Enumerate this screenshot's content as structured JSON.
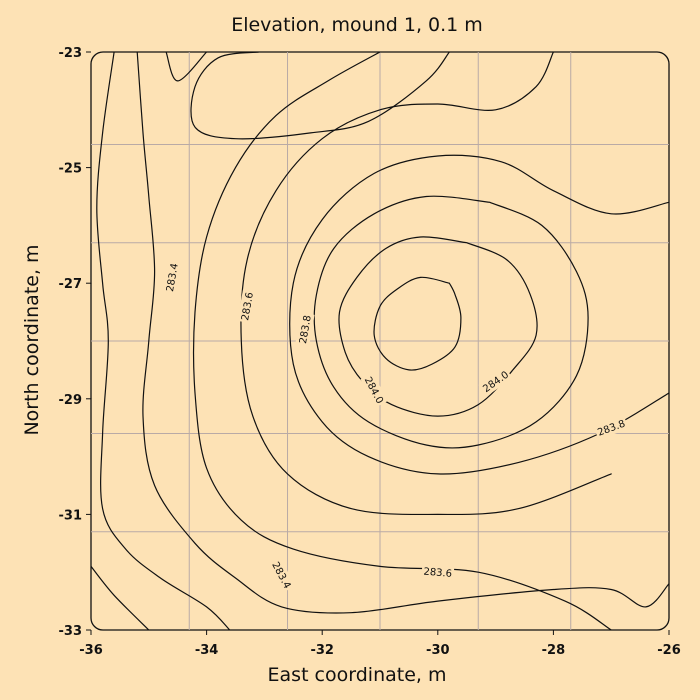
{
  "chart_data": {
    "type": "contour",
    "title": "Elevation, mound 1, 0.1 m",
    "xlabel": "East coordinate, m",
    "ylabel": "North coordinate, m",
    "xlim": [
      -36,
      -26
    ],
    "ylim": [
      -33,
      -23
    ],
    "xticks": [
      -36,
      -34,
      -32,
      -30,
      -28,
      -26
    ],
    "yticks": [
      -23,
      -25,
      -27,
      -29,
      -31,
      -33
    ],
    "xtick_labels": [
      "-36",
      "-34",
      "-32",
      "-30",
      "-28",
      "-26"
    ],
    "ytick_labels": [
      "-23",
      "-25",
      "-27",
      "-29",
      "-31",
      "-33"
    ],
    "grid": true,
    "grid_x": [
      -34.3,
      -32.6,
      -31.0,
      -29.3,
      -27.7
    ],
    "grid_y": [
      -24.6,
      -26.3,
      -28.0,
      -29.6,
      -31.3
    ],
    "contour_interval": 0.1,
    "contours": [
      {
        "level": 284.1,
        "labeled": false,
        "points": [
          [
            -29.8,
            -27.0
          ],
          [
            -30.3,
            -26.9
          ],
          [
            -30.7,
            -27.1
          ],
          [
            -31.0,
            -27.4
          ],
          [
            -31.1,
            -27.9
          ],
          [
            -30.9,
            -28.3
          ],
          [
            -30.5,
            -28.5
          ],
          [
            -30.1,
            -28.4
          ],
          [
            -29.7,
            -28.1
          ],
          [
            -29.6,
            -27.6
          ],
          [
            -29.7,
            -27.2
          ],
          [
            -29.8,
            -27.0
          ]
        ]
      },
      {
        "level": 284.0,
        "labeled": true,
        "labels": [
          {
            "text": "284.0",
            "x": -31.1,
            "y": -28.85,
            "angle": 62
          },
          {
            "text": "284.0",
            "x": -29.0,
            "y": -28.7,
            "angle": -35
          }
        ],
        "points": [
          [
            -29.5,
            -26.3
          ],
          [
            -30.3,
            -26.2
          ],
          [
            -30.9,
            -26.4
          ],
          [
            -31.4,
            -26.9
          ],
          [
            -31.7,
            -27.5
          ],
          [
            -31.6,
            -28.2
          ],
          [
            -31.3,
            -28.7
          ],
          [
            -30.8,
            -29.1
          ],
          [
            -30.0,
            -29.3
          ],
          [
            -29.3,
            -29.1
          ],
          [
            -28.7,
            -28.5
          ],
          [
            -28.3,
            -27.9
          ],
          [
            -28.4,
            -27.2
          ],
          [
            -28.8,
            -26.6
          ],
          [
            -29.5,
            -26.3
          ]
        ]
      },
      {
        "level": 283.9,
        "labeled": false,
        "points": [
          [
            -29.1,
            -25.6
          ],
          [
            -30.2,
            -25.5
          ],
          [
            -31.1,
            -25.8
          ],
          [
            -31.8,
            -26.4
          ],
          [
            -32.1,
            -27.2
          ],
          [
            -32.1,
            -28.0
          ],
          [
            -31.8,
            -28.8
          ],
          [
            -31.2,
            -29.4
          ],
          [
            -30.2,
            -29.8
          ],
          [
            -29.3,
            -29.8
          ],
          [
            -28.3,
            -29.4
          ],
          [
            -27.6,
            -28.6
          ],
          [
            -27.4,
            -27.6
          ],
          [
            -27.6,
            -26.8
          ],
          [
            -28.2,
            -26.0
          ],
          [
            -29.1,
            -25.6
          ]
        ]
      },
      {
        "level": 283.8,
        "labeled": true,
        "labels": [
          {
            "text": "283.8",
            "x": -32.3,
            "y": -27.8,
            "angle": -80
          },
          {
            "text": "283.8",
            "x": -27.0,
            "y": -29.5,
            "angle": -20
          }
        ],
        "points": [
          [
            -26.0,
            -28.9
          ],
          [
            -27.2,
            -29.6
          ],
          [
            -28.6,
            -30.1
          ],
          [
            -30.0,
            -30.3
          ],
          [
            -31.2,
            -30.0
          ],
          [
            -32.0,
            -29.4
          ],
          [
            -32.5,
            -28.4
          ],
          [
            -32.5,
            -27.0
          ],
          [
            -32.0,
            -25.9
          ],
          [
            -31.1,
            -25.1
          ],
          [
            -30.0,
            -24.8
          ],
          [
            -28.9,
            -24.9
          ],
          [
            -28.0,
            -25.4
          ],
          [
            -27.0,
            -25.8
          ],
          [
            -26.0,
            -25.6
          ]
        ]
      },
      {
        "level": 283.7,
        "labeled": false,
        "points": [
          [
            -27.0,
            -30.3
          ],
          [
            -28.6,
            -30.9
          ],
          [
            -30.0,
            -31.0
          ],
          [
            -31.5,
            -30.9
          ],
          [
            -32.6,
            -30.3
          ],
          [
            -33.2,
            -29.3
          ],
          [
            -33.4,
            -28.0
          ],
          [
            -33.3,
            -26.6
          ],
          [
            -32.8,
            -25.4
          ],
          [
            -32.0,
            -24.5
          ],
          [
            -31.0,
            -24.0
          ],
          [
            -30.0,
            -23.9
          ],
          [
            -29.0,
            -24.0
          ],
          [
            -28.3,
            -23.6
          ],
          [
            -28.0,
            -23.0
          ]
        ]
      },
      {
        "level": 283.6,
        "labeled": true,
        "labels": [
          {
            "text": "283.6",
            "x": -33.3,
            "y": -27.4,
            "angle": -80
          },
          {
            "text": "283.6",
            "x": -30.0,
            "y": -32.0,
            "angle": 5
          }
        ],
        "points": [
          [
            -27.0,
            -33.0
          ],
          [
            -27.8,
            -32.5
          ],
          [
            -29.3,
            -32.0
          ],
          [
            -31.0,
            -31.9
          ],
          [
            -32.5,
            -31.6
          ],
          [
            -33.4,
            -31.1
          ],
          [
            -34.0,
            -30.2
          ],
          [
            -34.2,
            -28.9
          ],
          [
            -34.2,
            -27.5
          ],
          [
            -34.0,
            -26.2
          ],
          [
            -33.5,
            -25.0
          ],
          [
            -32.8,
            -24.1
          ],
          [
            -31.9,
            -23.5
          ],
          [
            -31.0,
            -23.0
          ]
        ]
      },
      {
        "level": 283.5,
        "labeled": false,
        "points": [
          [
            -26.0,
            -32.2
          ],
          [
            -26.4,
            -32.6
          ],
          [
            -27.0,
            -32.3
          ],
          [
            -28.0,
            -32.3
          ],
          [
            -30.0,
            -32.5
          ],
          [
            -31.5,
            -32.7
          ],
          [
            -32.7,
            -32.6
          ],
          [
            -33.5,
            -32.1
          ],
          [
            -34.2,
            -31.5
          ],
          [
            -34.9,
            -30.5
          ],
          [
            -35.1,
            -29.3
          ],
          [
            -35.0,
            -28.0
          ],
          [
            -34.9,
            -26.8
          ],
          [
            -35.0,
            -25.5
          ],
          [
            -35.1,
            -24.4
          ],
          [
            -35.2,
            -23.0
          ]
        ]
      },
      {
        "level": 283.4,
        "labeled": true,
        "labels": [
          {
            "text": "283.4",
            "x": -34.6,
            "y": -26.9,
            "angle": -80
          },
          {
            "text": "283.4",
            "x": -32.7,
            "y": -32.05,
            "angle": 62
          }
        ],
        "points": [
          [
            -33.6,
            -33.0
          ],
          [
            -34.0,
            -32.6
          ],
          [
            -34.8,
            -32.1
          ],
          [
            -35.4,
            -31.6
          ],
          [
            -35.8,
            -30.9
          ],
          [
            -35.8,
            -29.6
          ],
          [
            -35.7,
            -28.0
          ],
          [
            -35.8,
            -27.0
          ],
          [
            -35.9,
            -25.7
          ],
          [
            -35.8,
            -24.4
          ],
          [
            -35.6,
            -23.0
          ]
        ]
      },
      {
        "level": 283.3,
        "labeled": false,
        "points": [
          [
            -35.0,
            -33.0
          ],
          [
            -35.6,
            -32.4
          ],
          [
            -36.0,
            -31.9
          ]
        ]
      },
      {
        "level": 283.3,
        "labeled": false,
        "points": [
          [
            -36.0,
            -29.0
          ],
          [
            -36.2,
            -28.0
          ],
          [
            -36.0,
            -27.0
          ]
        ]
      },
      {
        "level": 283.7,
        "labeled": false,
        "points": [
          [
            -33.1,
            -23.0
          ],
          [
            -33.8,
            -23.1
          ],
          [
            -34.2,
            -23.6
          ],
          [
            -34.2,
            -24.3
          ],
          [
            -33.5,
            -24.5
          ],
          [
            -32.2,
            -24.4
          ],
          [
            -31.2,
            -24.2
          ],
          [
            -30.2,
            -23.5
          ],
          [
            -29.8,
            -23.0
          ]
        ]
      },
      {
        "level": 283.8,
        "labeled": false,
        "points": [
          [
            -34.7,
            -23.0
          ],
          [
            -34.5,
            -23.5
          ],
          [
            -34.0,
            -23.0
          ]
        ]
      }
    ]
  }
}
